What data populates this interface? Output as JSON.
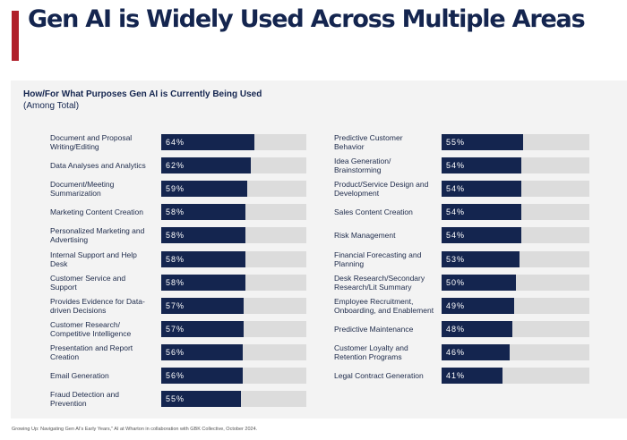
{
  "header": {
    "title": "Gen AI is Widely Used Across Multiple Areas",
    "accent_color": "#b0202a"
  },
  "subtitle": {
    "bold": "How/For What Purposes Gen AI is Currently Being Used",
    "normal": "(Among Total)"
  },
  "source": "Growing Up: Navigating Gen AI's Early Years,\" AI at Wharton in collaboration with GBK Collective, October 2024.",
  "chart_data": {
    "type": "bar",
    "orientation": "horizontal",
    "unit": "%",
    "xlim": [
      0,
      100
    ],
    "colors": {
      "bar": "#14254f",
      "track": "#dcdcdc"
    },
    "columns": [
      {
        "categories": [
          "Document and Proposal Writing/Editing",
          "Data Analyses and Analytics",
          "Document/Meeting Summarization",
          "Marketing Content Creation",
          "Personalized Marketing and Advertising",
          "Internal Support and Help Desk",
          "Customer Service and Support",
          "Provides Evidence for Data-driven Decisions",
          "Customer Research/ Competitive Intelligence",
          "Presentation and Report Creation",
          "Email Generation",
          "Fraud Detection and Prevention"
        ],
        "values": [
          64,
          62,
          59,
          58,
          58,
          58,
          58,
          57,
          57,
          56,
          56,
          55
        ],
        "labels": [
          "64%",
          "62%",
          "59%",
          "58%",
          "58%",
          "58%",
          "58%",
          "57%",
          "57%",
          "56%",
          "56%",
          "55%"
        ]
      },
      {
        "categories": [
          "Predictive Customer Behavior",
          "Idea Generation/ Brainstorming",
          "Product/Service Design and Development",
          "Sales Content Creation",
          "Risk Management",
          "Financial Forecasting and Planning",
          "Desk Research/Secondary Research/Lit Summary",
          "Employee Recruitment, Onboarding, and Enablement",
          "Predictive Maintenance",
          "Customer Loyalty and Retention Programs",
          "Legal Contract Generation"
        ],
        "values": [
          55,
          54,
          54,
          54,
          54,
          53,
          50,
          49,
          48,
          46,
          41
        ],
        "labels": [
          "55%",
          "54%",
          "54%",
          "54%",
          "54%",
          "53%",
          "50%",
          "49%",
          "48%",
          "46%",
          "41%"
        ]
      }
    ]
  }
}
